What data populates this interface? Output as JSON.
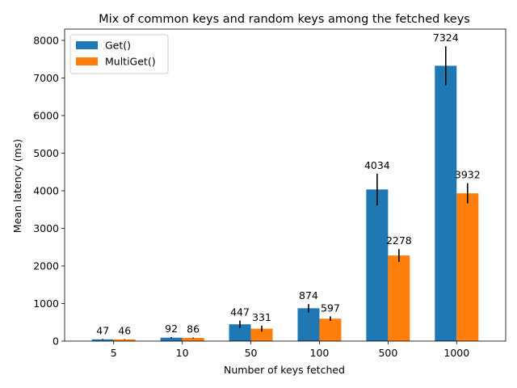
{
  "chart_data": {
    "type": "bar",
    "title": "Mix of common keys and random keys among the fetched keys",
    "xlabel": "Number of keys fetched",
    "ylabel": "Mean latency (ms)",
    "categories": [
      "5",
      "10",
      "50",
      "100",
      "500",
      "1000"
    ],
    "ylim": [
      0,
      8300
    ],
    "yticks": [
      0,
      1000,
      2000,
      3000,
      4000,
      5000,
      6000,
      7000,
      8000
    ],
    "legend_position": "top-left",
    "grid": false,
    "series": [
      {
        "name": "Get()",
        "color": "#1f77b4",
        "values": [
          47,
          92,
          447,
          874,
          4034,
          7324
        ],
        "error": [
          10,
          15,
          100,
          110,
          420,
          520
        ],
        "labels": [
          "47",
          "92",
          "447",
          "874",
          "4034",
          "7324"
        ]
      },
      {
        "name": "MultiGet()",
        "color": "#ff7f0e",
        "values": [
          46,
          86,
          331,
          597,
          2278,
          3932
        ],
        "error": [
          8,
          12,
          80,
          60,
          170,
          270
        ],
        "labels": [
          "46",
          "86",
          "331",
          "597",
          "2278",
          "3932"
        ]
      }
    ]
  }
}
